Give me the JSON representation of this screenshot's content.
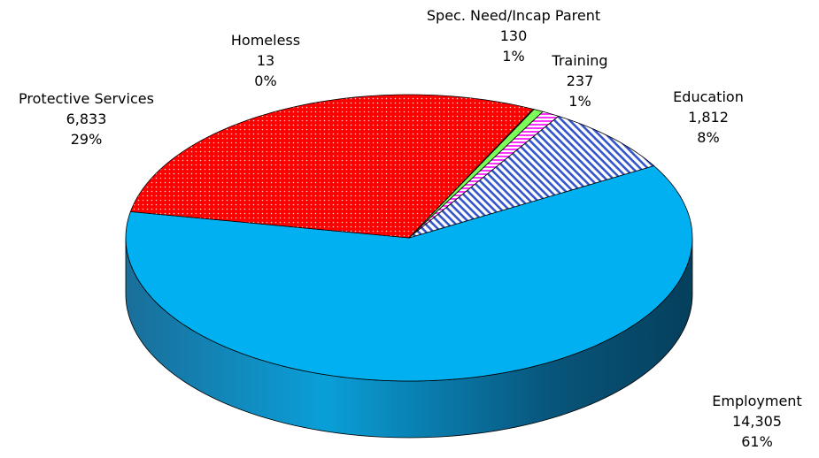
{
  "chart_data": {
    "type": "pie",
    "style": "3d",
    "title": "",
    "slices": [
      {
        "name": "Employment",
        "value_label": "14,305",
        "value": 14305,
        "pct_label": "61%",
        "color": "#00b0f0",
        "side": "#1f6f96",
        "pattern": "none"
      },
      {
        "name": "Protective Services",
        "value_label": "6,833",
        "value": 6833,
        "pct_label": "29%",
        "color": "#ff0000",
        "side": "#b00000",
        "pattern": "dots"
      },
      {
        "name": "Homeless",
        "value_label": "13",
        "value": 13,
        "pct_label": "0%",
        "color": "#ffff00",
        "side": "#b0b000",
        "pattern": "none"
      },
      {
        "name": "Spec. Need/Incap Parent",
        "value_label": "130",
        "value": 130,
        "pct_label": "1%",
        "color": "#7dff5a",
        "side": "#4caf37",
        "pattern": "none"
      },
      {
        "name": "Training",
        "value_label": "237",
        "value": 237,
        "pct_label": "1%",
        "color": "#ff33ff",
        "side": "#b020b0",
        "pattern": "hlines"
      },
      {
        "name": "Education",
        "value_label": "1,812",
        "value": 1812,
        "pct_label": "8%",
        "color": "#3355cc",
        "side": "#22408a",
        "pattern": "diag"
      }
    ]
  }
}
